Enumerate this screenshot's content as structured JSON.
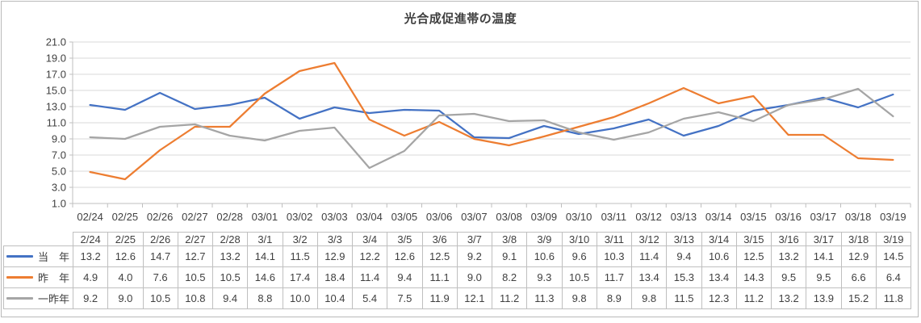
{
  "chart_data": {
    "type": "line",
    "title": "光合成促進帯の温度",
    "xlabel": "",
    "ylabel": "",
    "x": [
      "02/24",
      "02/25",
      "02/26",
      "02/27",
      "02/28",
      "03/01",
      "03/02",
      "03/03",
      "03/04",
      "03/05",
      "03/06",
      "03/07",
      "03/08",
      "03/09",
      "03/10",
      "03/11",
      "03/12",
      "03/13",
      "03/14",
      "03/15",
      "03/16",
      "03/17",
      "03/18",
      "03/19"
    ],
    "series": [
      {
        "name": "当　年",
        "color": "#4472C4",
        "values": [
          13.2,
          12.6,
          14.7,
          12.7,
          13.2,
          14.1,
          11.5,
          12.9,
          12.2,
          12.6,
          12.5,
          9.2,
          9.1,
          10.6,
          9.6,
          10.3,
          11.4,
          9.4,
          10.6,
          12.5,
          13.2,
          14.1,
          12.9,
          14.5
        ]
      },
      {
        "name": "昨　年",
        "color": "#ED7D31",
        "values": [
          4.9,
          4.0,
          7.6,
          10.5,
          10.5,
          14.6,
          17.4,
          18.4,
          11.4,
          9.4,
          11.1,
          9.0,
          8.2,
          9.3,
          10.5,
          11.7,
          13.4,
          15.3,
          13.4,
          14.3,
          9.5,
          9.5,
          6.6,
          6.4
        ]
      },
      {
        "name": "一昨年",
        "color": "#A5A5A5",
        "values": [
          9.2,
          9.0,
          10.5,
          10.8,
          9.4,
          8.8,
          10.0,
          10.4,
          5.4,
          7.5,
          11.9,
          12.1,
          11.2,
          11.3,
          9.8,
          8.9,
          9.8,
          11.5,
          12.3,
          11.2,
          13.2,
          13.9,
          15.2,
          11.8
        ]
      }
    ],
    "ylim": [
      1.0,
      21.0
    ],
    "ytick_labels": [
      "21.0",
      "19.0",
      "17.0",
      "15.0",
      "13.0",
      "11.0",
      "9.0",
      "7.0",
      "5.0",
      "3.0",
      "1.0"
    ],
    "grid": true,
    "legend_position": "data-table-left"
  },
  "table": {
    "columns": [
      "2/24",
      "2/25",
      "2/26",
      "2/27",
      "2/28",
      "3/1",
      "3/2",
      "3/3",
      "3/4",
      "3/5",
      "3/6",
      "3/7",
      "3/8",
      "3/9",
      "3/10",
      "3/11",
      "3/12",
      "3/13",
      "3/14",
      "3/15",
      "3/16",
      "3/17",
      "3/18",
      "3/19"
    ]
  },
  "colors": {
    "gridline": "#d9d9d9",
    "axis": "#bfbfbf",
    "table_border": "#bfbfbf",
    "text": "#404040",
    "frame_border": "#b9b9b9"
  }
}
